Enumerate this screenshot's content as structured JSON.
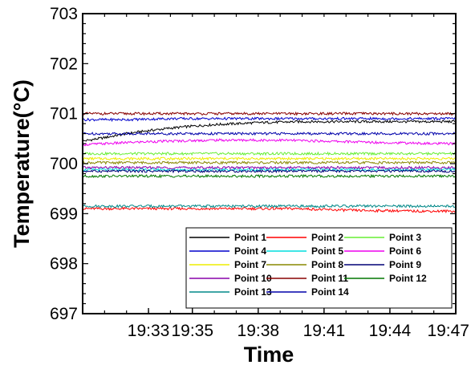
{
  "chart_data": {
    "type": "line",
    "title": "",
    "xlabel": "Time",
    "ylabel": "Temperature(°C)",
    "ylim": [
      697,
      703
    ],
    "yticks": [
      "697",
      "698",
      "699",
      "700",
      "701",
      "702",
      "703"
    ],
    "xticks": [
      "19:33",
      "19:35",
      "19:38",
      "19:41",
      "19:44",
      "19:47"
    ],
    "xtick_values": [
      "19:33",
      "19:35",
      "19:38",
      "19:41",
      "19:44",
      "19:47"
    ],
    "xlim": [
      "19:30",
      "19:47"
    ],
    "x": [
      "19:30",
      "19:31",
      "19:32",
      "19:33",
      "19:34",
      "19:35",
      "19:36",
      "19:37",
      "19:38",
      "19:39",
      "19:40",
      "19:41",
      "19:42",
      "19:43",
      "19:44",
      "19:45",
      "19:46",
      "19:47"
    ],
    "grid": false,
    "legend_placement": "bottom-right",
    "series": [
      {
        "name": "Point 1",
        "color": "#000000",
        "values": [
          700.45,
          700.52,
          700.6,
          700.66,
          700.71,
          700.75,
          700.78,
          700.8,
          700.82,
          700.83,
          700.84,
          700.84,
          700.84,
          700.84,
          700.84,
          700.84,
          700.84,
          700.84
        ]
      },
      {
        "name": "Point 2",
        "color": "#ff0000",
        "values": [
          699.1,
          699.1,
          699.1,
          699.1,
          699.1,
          699.1,
          699.1,
          699.1,
          699.1,
          699.1,
          699.1,
          699.08,
          699.07,
          699.06,
          699.06,
          699.05,
          699.05,
          699.05
        ]
      },
      {
        "name": "Point 3",
        "color": "#66ee33",
        "values": [
          700.2,
          700.2,
          700.2,
          700.2,
          700.2,
          700.2,
          700.2,
          700.2,
          700.2,
          700.2,
          700.2,
          700.2,
          700.2,
          700.2,
          700.2,
          700.2,
          700.2,
          700.2
        ]
      },
      {
        "name": "Point 4",
        "color": "#0000cc",
        "values": [
          700.88,
          700.88,
          700.88,
          700.89,
          700.9,
          700.9,
          700.9,
          700.9,
          700.9,
          700.9,
          700.9,
          700.9,
          700.9,
          700.9,
          700.9,
          700.9,
          700.9,
          700.9
        ]
      },
      {
        "name": "Point 5",
        "color": "#00dddd",
        "values": [
          699.88,
          699.88,
          699.88,
          699.88,
          699.88,
          699.88,
          699.88,
          699.88,
          699.88,
          699.88,
          699.88,
          699.88,
          699.88,
          699.88,
          699.88,
          699.88,
          699.88,
          699.88
        ]
      },
      {
        "name": "Point 6",
        "color": "#ee00ee",
        "values": [
          700.38,
          700.4,
          700.42,
          700.44,
          700.45,
          700.46,
          700.47,
          700.47,
          700.47,
          700.47,
          700.46,
          700.45,
          700.44,
          700.43,
          700.42,
          700.41,
          700.4,
          700.4
        ]
      },
      {
        "name": "Point 7",
        "color": "#eeee00",
        "values": [
          700.1,
          700.1,
          700.1,
          700.1,
          700.1,
          700.1,
          700.1,
          700.1,
          700.1,
          700.1,
          700.1,
          700.1,
          700.1,
          700.1,
          700.1,
          700.1,
          700.1,
          700.1
        ]
      },
      {
        "name": "Point 8",
        "color": "#888800",
        "values": [
          700.02,
          700.02,
          700.02,
          700.02,
          700.02,
          700.02,
          700.02,
          700.02,
          700.02,
          700.02,
          700.02,
          700.02,
          700.02,
          700.02,
          700.02,
          700.02,
          700.02,
          700.02
        ]
      },
      {
        "name": "Point 9",
        "color": "#000077",
        "values": [
          699.85,
          699.85,
          699.85,
          699.85,
          699.85,
          699.85,
          699.85,
          699.85,
          699.85,
          699.85,
          699.85,
          699.85,
          699.85,
          699.85,
          699.85,
          699.85,
          699.85,
          699.85
        ]
      },
      {
        "name": "Point 10",
        "color": "#8800aa",
        "values": [
          699.92,
          699.92,
          699.92,
          699.92,
          699.92,
          699.92,
          699.92,
          699.92,
          699.92,
          699.92,
          699.92,
          699.92,
          699.92,
          699.92,
          699.92,
          699.92,
          699.92,
          699.92
        ]
      },
      {
        "name": "Point 11",
        "color": "#880000",
        "values": [
          701.0,
          701.0,
          701.0,
          701.0,
          701.0,
          701.0,
          701.0,
          701.0,
          701.0,
          701.0,
          701.0,
          701.0,
          701.0,
          701.0,
          701.0,
          701.0,
          701.0,
          701.0
        ]
      },
      {
        "name": "Point 12",
        "color": "#007700",
        "values": [
          699.75,
          699.75,
          699.75,
          699.75,
          699.75,
          699.75,
          699.75,
          699.75,
          699.75,
          699.75,
          699.75,
          699.75,
          699.75,
          699.75,
          699.75,
          699.75,
          699.75,
          699.75
        ]
      },
      {
        "name": "Point 13",
        "color": "#008888",
        "values": [
          699.15,
          699.15,
          699.15,
          699.15,
          699.15,
          699.15,
          699.15,
          699.15,
          699.15,
          699.15,
          699.15,
          699.15,
          699.15,
          699.15,
          699.15,
          699.15,
          699.15,
          699.15
        ]
      },
      {
        "name": "Point 14",
        "color": "#0000aa",
        "values": [
          700.6,
          700.6,
          700.6,
          700.6,
          700.6,
          700.6,
          700.6,
          700.6,
          700.6,
          700.6,
          700.6,
          700.6,
          700.6,
          700.6,
          700.6,
          700.6,
          700.6,
          700.6
        ]
      }
    ]
  }
}
